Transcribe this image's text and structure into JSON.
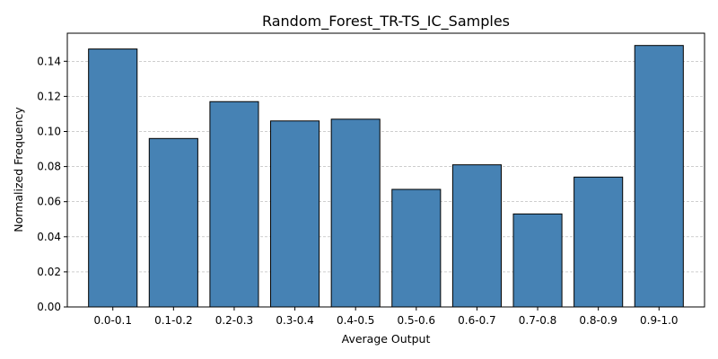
{
  "chart_data": {
    "type": "bar",
    "title": "Random_Forest_TR-TS_IC_Samples",
    "xlabel": "Average Output",
    "ylabel": "Normalized Frequency",
    "categories": [
      "0.0-0.1",
      "0.1-0.2",
      "0.2-0.3",
      "0.3-0.4",
      "0.4-0.5",
      "0.5-0.6",
      "0.6-0.7",
      "0.7-0.8",
      "0.8-0.9",
      "0.9-1.0"
    ],
    "values": [
      0.147,
      0.096,
      0.117,
      0.106,
      0.107,
      0.067,
      0.081,
      0.053,
      0.074,
      0.149
    ],
    "ylim": [
      0,
      0.156
    ],
    "yticks": [
      0.0,
      0.02,
      0.04,
      0.06,
      0.08,
      0.1,
      0.12,
      0.14
    ],
    "ytick_labels": [
      "0.00",
      "0.02",
      "0.04",
      "0.06",
      "0.08",
      "0.10",
      "0.12",
      "0.14"
    ],
    "grid": "y-dashed",
    "bar_color": "#4682B4",
    "edge_color": "#000000",
    "grid_color": "#b0b0b0"
  }
}
